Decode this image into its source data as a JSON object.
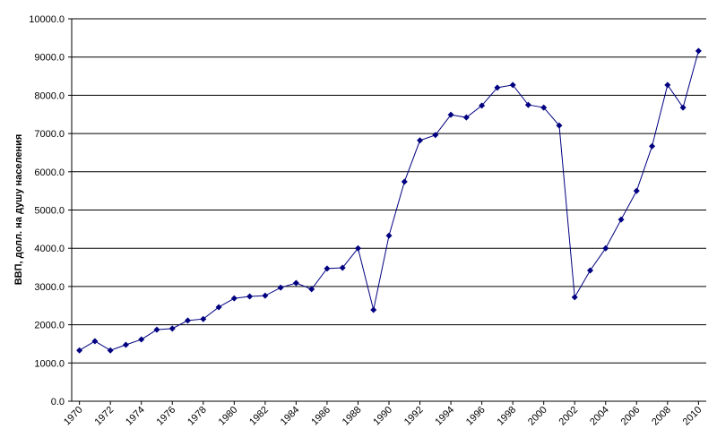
{
  "chart_data": {
    "type": "line",
    "y_label": "ВВП, долл. на душу населения",
    "x": [
      1970,
      1971,
      1972,
      1973,
      1974,
      1975,
      1976,
      1977,
      1978,
      1979,
      1980,
      1981,
      1982,
      1983,
      1984,
      1985,
      1986,
      1987,
      1988,
      1989,
      1990,
      1991,
      1992,
      1993,
      1994,
      1995,
      1996,
      1997,
      1998,
      1999,
      2000,
      2001,
      2002,
      2003,
      2004,
      2005,
      2006,
      2007,
      2008,
      2009,
      2010
    ],
    "values": [
      1330,
      1570,
      1330,
      1475,
      1615,
      1870,
      1900,
      2110,
      2150,
      2460,
      2690,
      2740,
      2760,
      2970,
      3090,
      2930,
      3470,
      3490,
      4000,
      2390,
      4330,
      5740,
      6820,
      6960,
      7490,
      7420,
      7730,
      8200,
      8270,
      7750,
      7680,
      7210,
      2720,
      3420,
      4000,
      4750,
      5500,
      6670,
      8270,
      7680,
      9160
    ],
    "color": "#000080",
    "marker": "diamond",
    "xlim": [
      1969.5,
      2010.5
    ],
    "xticks": [
      1970,
      1972,
      1974,
      1976,
      1978,
      1980,
      1982,
      1984,
      1986,
      1988,
      1990,
      1992,
      1994,
      1996,
      1998,
      2000,
      2002,
      2004,
      2006,
      2008,
      2010
    ],
    "ylim": [
      0,
      10000
    ],
    "yticks": [
      {
        "value": 0,
        "label": "0.0"
      },
      {
        "value": 1000,
        "label": "1000.0"
      },
      {
        "value": 2000,
        "label": "2000.0"
      },
      {
        "value": 3000,
        "label": "3000.0"
      },
      {
        "value": 4000,
        "label": "4000.0"
      },
      {
        "value": 5000,
        "label": "5000.0"
      },
      {
        "value": 6000,
        "label": "6000.0"
      },
      {
        "value": 7000,
        "label": "7000.0"
      },
      {
        "value": 8000,
        "label": "8000.0"
      },
      {
        "value": 9000,
        "label": "9000.0"
      },
      {
        "value": 10000,
        "label": "10000.0"
      }
    ],
    "grid": true
  }
}
